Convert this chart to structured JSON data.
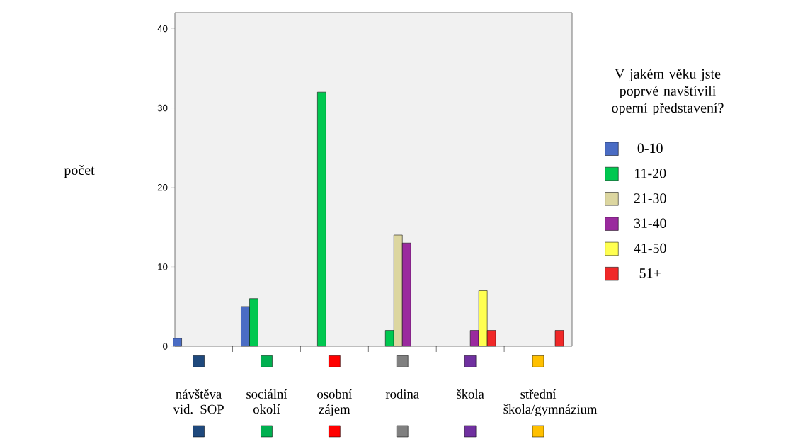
{
  "chart_data": {
    "type": "bar",
    "ylabel": "počet",
    "legend_title": "V jakém věku jste poprvé navštívili operní představení?",
    "categories": [
      "návštěva vid. SOP",
      "sociální okolí",
      "osobní zájem",
      "rodina",
      "škola",
      "střední škola/gymnázium"
    ],
    "series": [
      {
        "name": "0-10",
        "color": "#4a6cc4",
        "values": [
          1,
          5,
          null,
          null,
          null,
          null
        ]
      },
      {
        "name": "11-20",
        "color": "#00c850",
        "values": [
          null,
          6,
          32,
          2,
          null,
          null
        ]
      },
      {
        "name": "21-30",
        "color": "#dcd6a0",
        "values": [
          null,
          null,
          null,
          14,
          null,
          null
        ]
      },
      {
        "name": "31-40",
        "color": "#9a2a9e",
        "values": [
          null,
          null,
          null,
          13,
          2,
          null
        ]
      },
      {
        "name": "41-50",
        "color": "#ffff50",
        "values": [
          null,
          null,
          null,
          null,
          7,
          null
        ]
      },
      {
        "name": "51+",
        "color": "#f02828",
        "values": [
          null,
          null,
          null,
          null,
          2,
          2
        ]
      }
    ],
    "ylim": [
      0,
      42
    ],
    "yticks": [
      0,
      10,
      20,
      30,
      40
    ],
    "grid": false,
    "legend": "right"
  }
}
